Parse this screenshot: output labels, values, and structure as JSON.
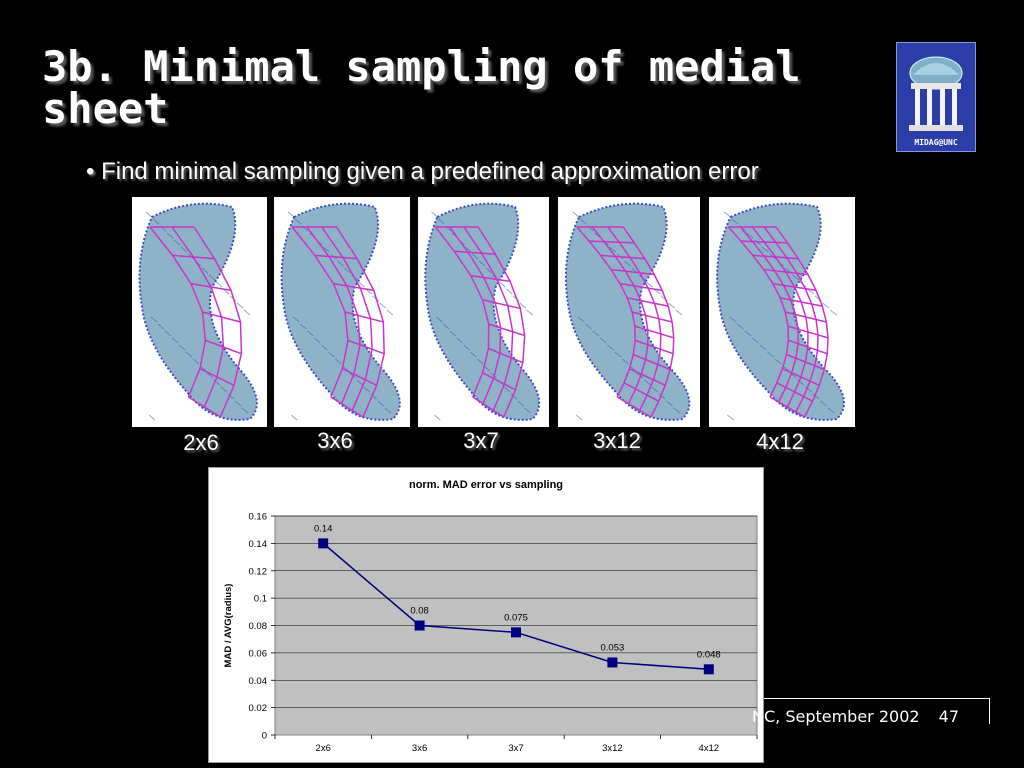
{
  "slide": {
    "title": "3b. Minimal sampling of medial sheet",
    "bullet": "• Find minimal sampling given a predefined approximation error",
    "logo_text": "MIDAG@UNC",
    "footer": "NC, September 2002",
    "page_number": "47"
  },
  "panels": [
    {
      "label": "2x6",
      "rows": 6,
      "cols": 2
    },
    {
      "label": "3x6",
      "rows": 6,
      "cols": 3
    },
    {
      "label": "3x7",
      "rows": 7,
      "cols": 3
    },
    {
      "label": "3x12",
      "rows": 12,
      "cols": 3
    },
    {
      "label": "4x12",
      "rows": 12,
      "cols": 4
    }
  ],
  "colors": {
    "mesh": "#cc33cc",
    "surface": "#8fb3c6",
    "series": "#000080",
    "plot_bg": "#c0c0c0"
  },
  "chart_data": {
    "type": "line",
    "title": "norm. MAD error vs sampling",
    "xlabel": "",
    "ylabel": "MAD / AVG(radius)",
    "categories": [
      "2x6",
      "3x6",
      "3x7",
      "3x12",
      "4x12"
    ],
    "series": [
      {
        "values": [
          0.14,
          0.08,
          0.075,
          0.053,
          0.048
        ]
      }
    ],
    "data_labels": [
      "0.14",
      "0.08",
      "0.075",
      "0.053",
      "0.048"
    ],
    "yticks": [
      "0",
      "0.02",
      "0.04",
      "0.06",
      "0.08",
      "0.1",
      "0.12",
      "0.14",
      "0.16"
    ],
    "ylim": [
      0,
      0.16
    ],
    "grid": true,
    "legend": "none"
  }
}
